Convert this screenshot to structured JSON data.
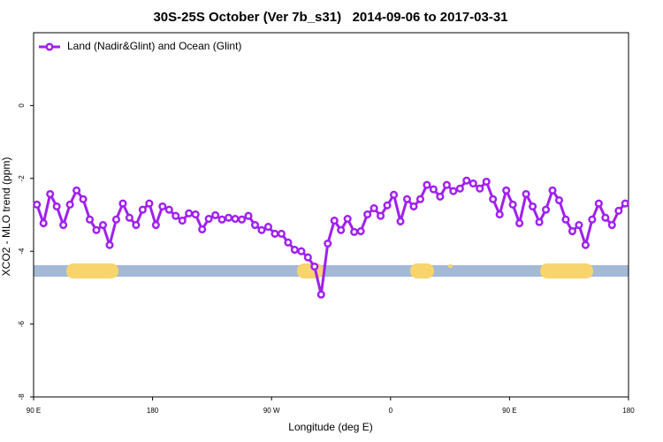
{
  "chart_data": {
    "type": "line",
    "title": "30S-25S October (Ver 7b_s31)   2014-09-06 to 2017-03-31",
    "x_label": "Longitude (deg E)",
    "y_label": "XCO2 - MLO trend (ppm)",
    "x": [
      92.5,
      97.5,
      102.5,
      107.5,
      112.5,
      117.5,
      122.5,
      127.5,
      132.5,
      137.5,
      142.5,
      147.5,
      152.5,
      157.5,
      162.5,
      167.5,
      172.5,
      177.5,
      182.5,
      187.5,
      192.5,
      197.5,
      202.5,
      207.5,
      212.5,
      217.5,
      222.5,
      227.5,
      232.5,
      237.5,
      242.5,
      247.5,
      252.5,
      257.5,
      262.5,
      267.5,
      272.5,
      277.5,
      282.5,
      287.5,
      292.5,
      297.5,
      302.5,
      307.5,
      312.5,
      317.5,
      322.5,
      327.5,
      332.5,
      337.5,
      342.5,
      347.5,
      352.5,
      357.5,
      362.5,
      367.5,
      372.5,
      377.5,
      382.5,
      387.5,
      392.5,
      397.5,
      402.5,
      407.5,
      412.5,
      417.5,
      422.5,
      427.5,
      432.5,
      437.5,
      442.5,
      447.5,
      452.5,
      457.5,
      462.5,
      467.5,
      472.5,
      477.5,
      482.5,
      487.5,
      492.5,
      497.5,
      502.5,
      507.5,
      512.5,
      517.5,
      522.5,
      527.5,
      532.5,
      537.5
    ],
    "series": [
      {
        "name": "Land (Nadir&Glint) and Ocean (Glint)",
        "color": "#a020f0",
        "values": [
          -2.72,
          -3.23,
          -2.43,
          -2.77,
          -3.28,
          -2.72,
          -2.33,
          -2.57,
          -3.13,
          -3.42,
          -3.28,
          -3.83,
          -3.13,
          -2.69,
          -3.08,
          -3.28,
          -2.86,
          -2.69,
          -3.28,
          -2.77,
          -2.86,
          -3.03,
          -3.16,
          -2.96,
          -2.99,
          -3.4,
          -3.11,
          -3.01,
          -3.13,
          -3.08,
          -3.11,
          -3.13,
          -3.03,
          -3.28,
          -3.42,
          -3.33,
          -3.52,
          -3.52,
          -3.76,
          -3.96,
          -4.0,
          -4.17,
          -4.42,
          -5.19,
          -3.79,
          -3.16,
          -3.42,
          -3.11,
          -3.47,
          -3.45,
          -2.99,
          -2.82,
          -3.03,
          -2.74,
          -2.45,
          -3.18,
          -2.57,
          -2.77,
          -2.57,
          -2.18,
          -2.3,
          -2.5,
          -2.18,
          -2.35,
          -2.28,
          -2.06,
          -2.14,
          -2.28,
          -2.09,
          -2.57,
          -2.99,
          -2.33,
          -2.72,
          -3.23,
          -2.43,
          -2.77,
          -3.2,
          -2.86,
          -2.33,
          -2.6,
          -3.13,
          -3.45,
          -3.28,
          -3.83,
          -3.13,
          -2.69,
          -3.08,
          -3.28,
          -2.89,
          -2.69
        ]
      }
    ],
    "xlim": [
      90,
      540
    ],
    "xticks": [
      {
        "value": 90,
        "label": "90 E"
      },
      180,
      {
        "value": 270,
        "label": "90 W"
      },
      {
        "value": 360,
        "label": "0"
      },
      {
        "value": 450,
        "label": "90 E"
      },
      {
        "value": 540,
        "label": "180"
      }
    ],
    "ylim": [
      -8,
      2
    ],
    "yticks": [
      0,
      -2,
      -4,
      -6,
      -8
    ],
    "legend": "top-left"
  }
}
